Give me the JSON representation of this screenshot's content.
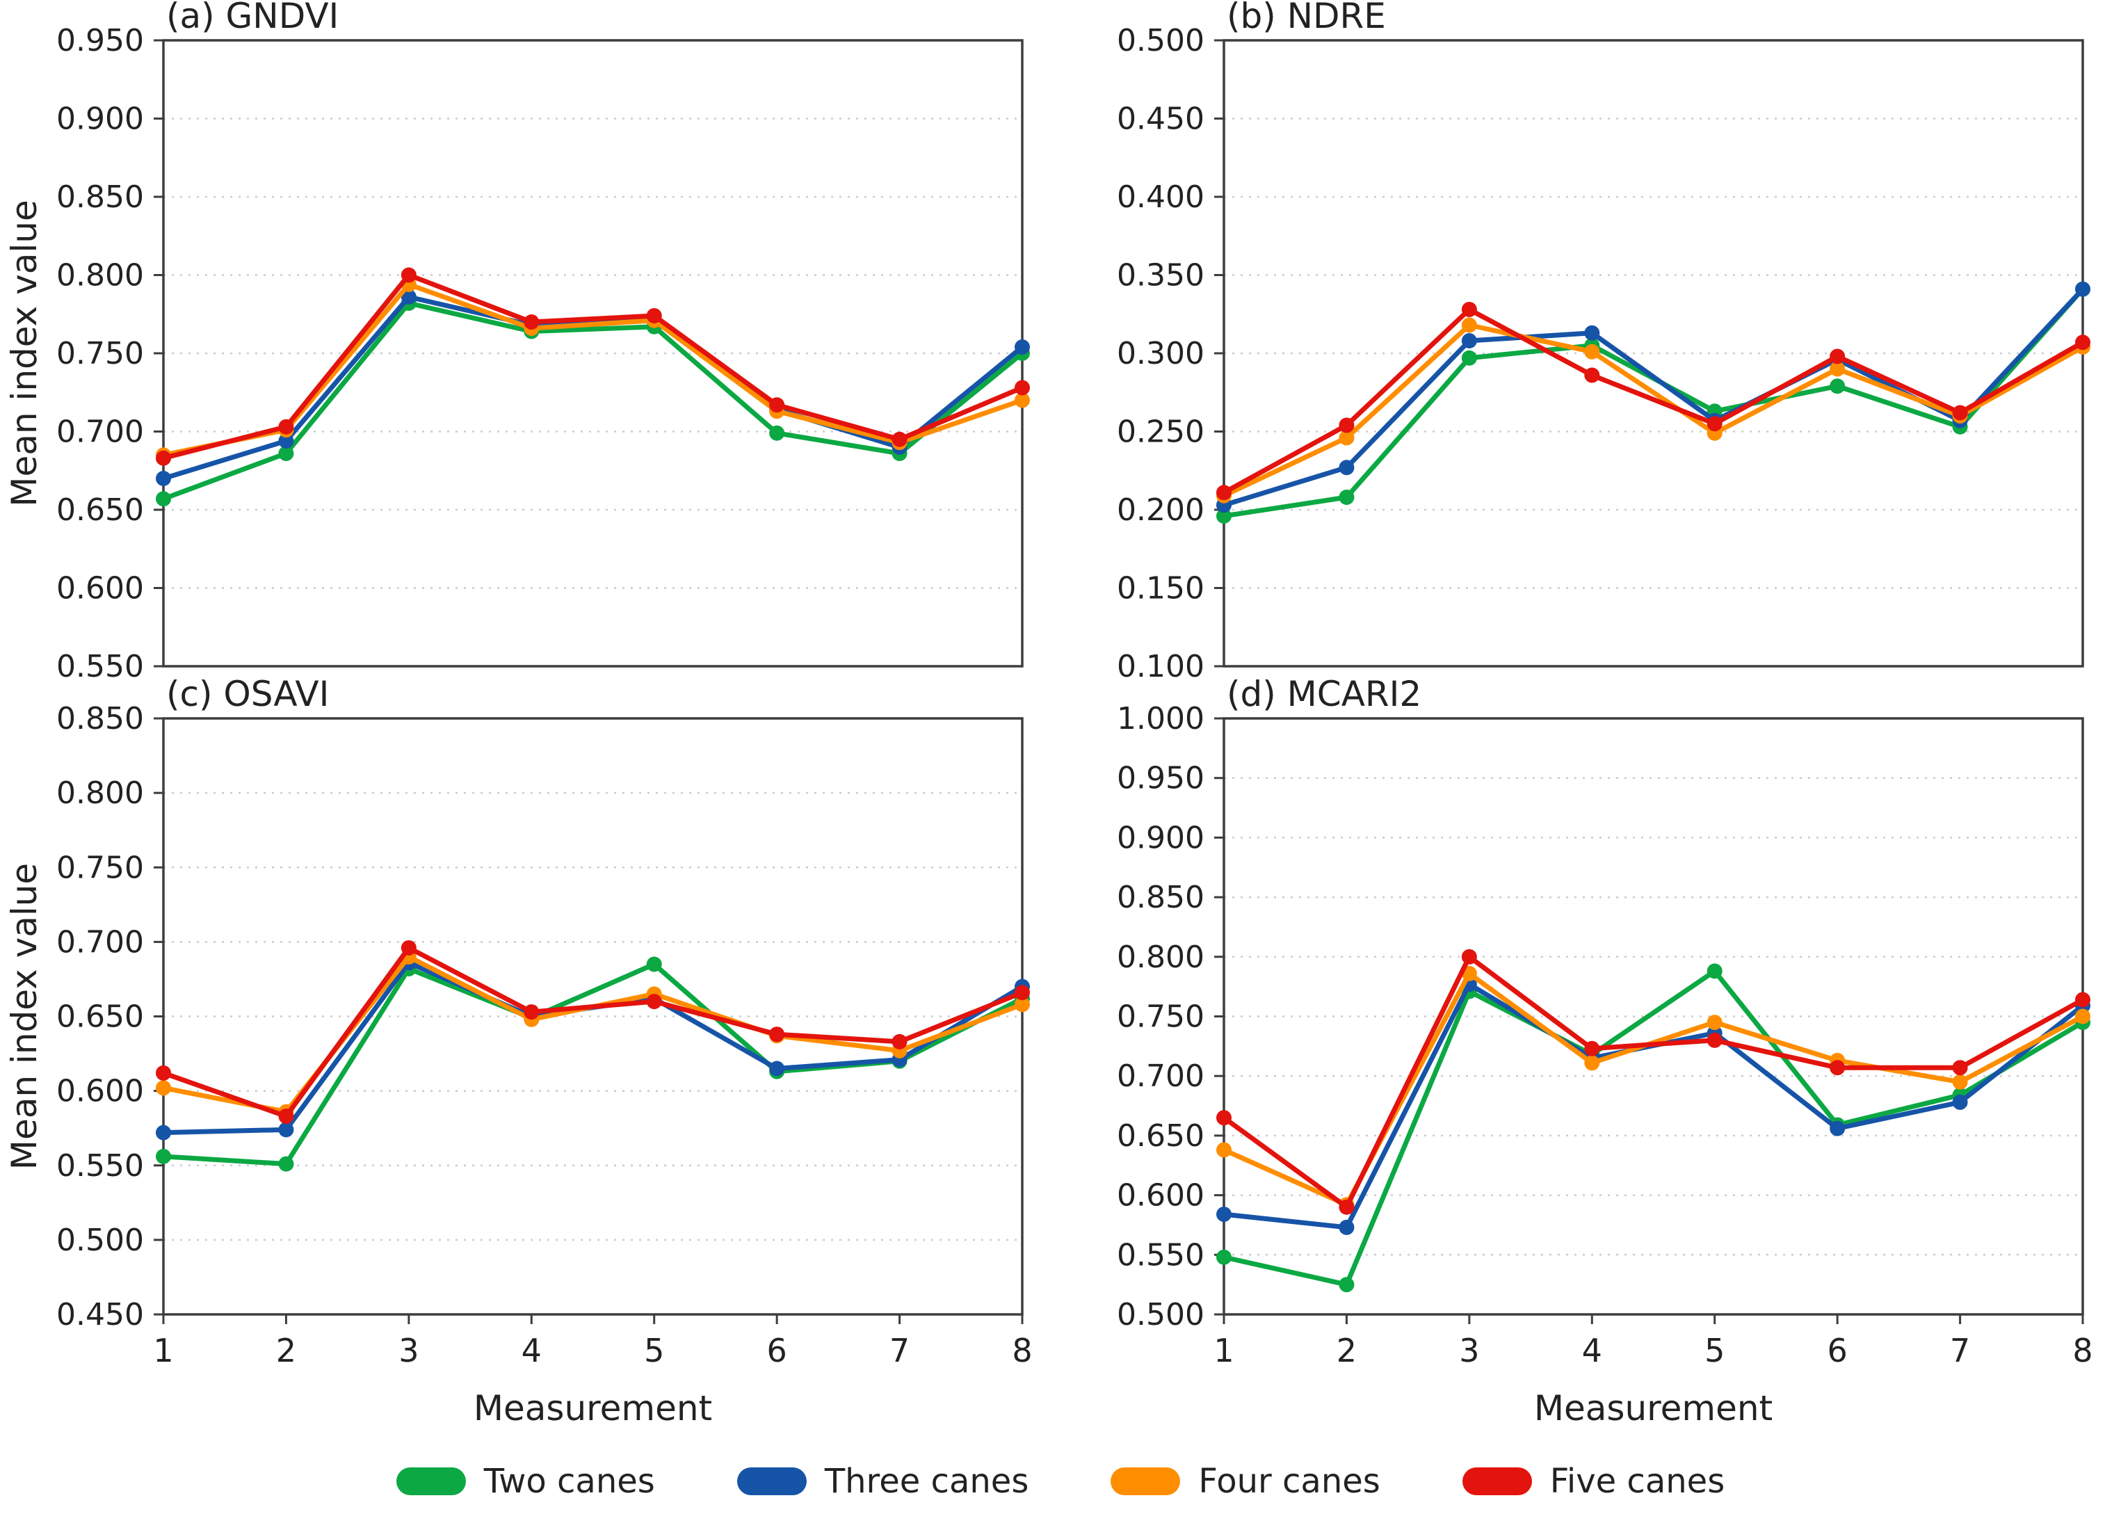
{
  "figure": {
    "background": "#ffffff",
    "text_color": "#222222",
    "spine_color": "#3d3d3d",
    "grid_color": "#cccccc"
  },
  "axis": {
    "x_label": "Measurement",
    "y_label": "Mean index value",
    "x_ticks": [
      "1",
      "2",
      "3",
      "4",
      "5",
      "6",
      "7",
      "8"
    ]
  },
  "legend": [
    {
      "label": "Two canes",
      "color": "#0BA843"
    },
    {
      "label": "Three canes",
      "color": "#1654A8"
    },
    {
      "label": "Four canes",
      "color": "#FF8D00"
    },
    {
      "label": "Five canes",
      "color": "#E3130D"
    }
  ],
  "series_colors": {
    "Two canes": "#0BA843",
    "Three canes": "#1654A8",
    "Four canes": "#FF8D00",
    "Five canes": "#E3130D"
  },
  "chart_data": [
    {
      "type": "line",
      "id": "a",
      "title": "(a) GNDVI",
      "xlabel": "",
      "ylabel": "Mean index value",
      "x": [
        1,
        2,
        3,
        4,
        5,
        6,
        7,
        8
      ],
      "ylim": [
        0.55,
        0.95
      ],
      "ytick_step": 0.05,
      "grid": true,
      "series": [
        {
          "name": "Two canes",
          "values": [
            0.657,
            0.686,
            0.782,
            0.764,
            0.767,
            0.699,
            0.686,
            0.75
          ]
        },
        {
          "name": "Three canes",
          "values": [
            0.67,
            0.694,
            0.786,
            0.768,
            0.771,
            0.714,
            0.69,
            0.754
          ]
        },
        {
          "name": "Four canes",
          "values": [
            0.685,
            0.701,
            0.794,
            0.766,
            0.771,
            0.713,
            0.693,
            0.72
          ]
        },
        {
          "name": "Five canes",
          "values": [
            0.683,
            0.703,
            0.8,
            0.77,
            0.774,
            0.717,
            0.695,
            0.728
          ]
        }
      ]
    },
    {
      "type": "line",
      "id": "b",
      "title": "(b) NDRE",
      "xlabel": "",
      "ylabel": "",
      "x": [
        1,
        2,
        3,
        4,
        5,
        6,
        7,
        8
      ],
      "ylim": [
        0.1,
        0.5
      ],
      "ytick_step": 0.05,
      "grid": true,
      "series": [
        {
          "name": "Two canes",
          "values": [
            0.196,
            0.208,
            0.297,
            0.305,
            0.263,
            0.279,
            0.253,
            0.341
          ]
        },
        {
          "name": "Three canes",
          "values": [
            0.203,
            0.227,
            0.308,
            0.313,
            0.257,
            0.296,
            0.257,
            0.341
          ]
        },
        {
          "name": "Four canes",
          "values": [
            0.209,
            0.246,
            0.318,
            0.301,
            0.249,
            0.29,
            0.26,
            0.304
          ]
        },
        {
          "name": "Five canes",
          "values": [
            0.211,
            0.254,
            0.328,
            0.286,
            0.255,
            0.298,
            0.262,
            0.307
          ]
        }
      ]
    },
    {
      "type": "line",
      "id": "c",
      "title": "(c) OSAVI",
      "xlabel": "Measurement",
      "ylabel": "Mean index value",
      "x": [
        1,
        2,
        3,
        4,
        5,
        6,
        7,
        8
      ],
      "ylim": [
        0.45,
        0.85
      ],
      "ytick_step": 0.05,
      "grid": true,
      "series": [
        {
          "name": "Two canes",
          "values": [
            0.556,
            0.551,
            0.682,
            0.649,
            0.685,
            0.613,
            0.62,
            0.662
          ]
        },
        {
          "name": "Three canes",
          "values": [
            0.572,
            0.574,
            0.686,
            0.65,
            0.662,
            0.615,
            0.621,
            0.67
          ]
        },
        {
          "name": "Four canes",
          "values": [
            0.602,
            0.586,
            0.69,
            0.648,
            0.665,
            0.637,
            0.627,
            0.658
          ]
        },
        {
          "name": "Five canes",
          "values": [
            0.612,
            0.583,
            0.696,
            0.653,
            0.66,
            0.638,
            0.633,
            0.666
          ]
        }
      ]
    },
    {
      "type": "line",
      "id": "d",
      "title": "(d) MCARI2",
      "xlabel": "Measurement",
      "ylabel": "",
      "x": [
        1,
        2,
        3,
        4,
        5,
        6,
        7,
        8
      ],
      "ylim": [
        0.5,
        1.0
      ],
      "ytick_step": 0.05,
      "grid": true,
      "series": [
        {
          "name": "Two canes",
          "values": [
            0.548,
            0.525,
            0.771,
            0.718,
            0.788,
            0.659,
            0.684,
            0.745
          ]
        },
        {
          "name": "Three canes",
          "values": [
            0.584,
            0.573,
            0.777,
            0.715,
            0.736,
            0.656,
            0.678,
            0.759
          ]
        },
        {
          "name": "Four canes",
          "values": [
            0.638,
            0.592,
            0.786,
            0.711,
            0.745,
            0.713,
            0.695,
            0.75
          ]
        },
        {
          "name": "Five canes",
          "values": [
            0.665,
            0.59,
            0.8,
            0.723,
            0.73,
            0.707,
            0.707,
            0.764
          ]
        }
      ]
    }
  ]
}
